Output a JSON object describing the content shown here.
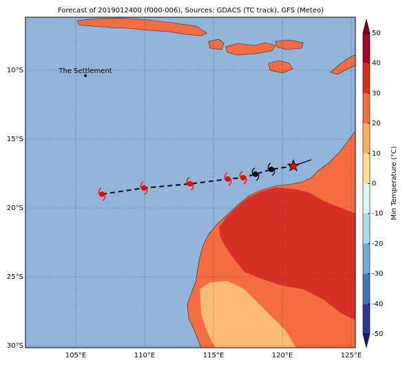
{
  "map": {
    "title": "Forecast of 2019012400 (f000-006), Sources: GDACS (TC track), GFS (Meteo)",
    "lonlim": [
      101.35,
      125.3
    ],
    "latlim": [
      -30.15,
      -6.15
    ],
    "lonticks": [
      {
        "value": 105,
        "label": "105°E"
      },
      {
        "value": 110,
        "label": "110°E"
      },
      {
        "value": 115,
        "label": "115°E"
      },
      {
        "value": 120,
        "label": "120°E"
      },
      {
        "value": 125,
        "label": "125°E"
      }
    ],
    "latticks": [
      {
        "value": -10,
        "label": "10°S"
      },
      {
        "value": -15,
        "label": "15°S"
      },
      {
        "value": -20,
        "label": "20°S"
      },
      {
        "value": -25,
        "label": "25°S"
      },
      {
        "value": -30,
        "label": "30°S"
      }
    ],
    "places": [
      {
        "name": "The Settlement",
        "lon": 105.7,
        "lat": -10.4
      }
    ],
    "track": {
      "points": [
        {
          "lon": 106.9,
          "lat": -19.0,
          "color": "#ff0000"
        },
        {
          "lon": 109.95,
          "lat": -18.55,
          "color": "#ff0000"
        },
        {
          "lon": 113.3,
          "lat": -18.25,
          "color": "#ff0000"
        },
        {
          "lon": 116.05,
          "lat": -17.9,
          "color": "#ff0000"
        },
        {
          "lon": 117.15,
          "lat": -17.8,
          "color": "#ff0000"
        },
        {
          "lon": 118.05,
          "lat": -17.55,
          "color": "#000000"
        },
        {
          "lon": 119.2,
          "lat": -17.2,
          "color": "#000000"
        }
      ],
      "current": {
        "lon": 120.8,
        "lat": -16.95,
        "color": "#ff0000"
      }
    },
    "colorbar": {
      "label": "Min Temperature (°C)",
      "ticks": [
        -50,
        -40,
        -30,
        -20,
        -10,
        0,
        10,
        20,
        30,
        40,
        50
      ],
      "colors": [
        "#313695",
        "#4575b4",
        "#74add1",
        "#abd9e9",
        "#e0f3f8",
        "#fee090",
        "#fdae61",
        "#f46d43",
        "#d73027",
        "#a50026"
      ],
      "under": "#1a1a6e",
      "over": "#7f0020"
    }
  }
}
